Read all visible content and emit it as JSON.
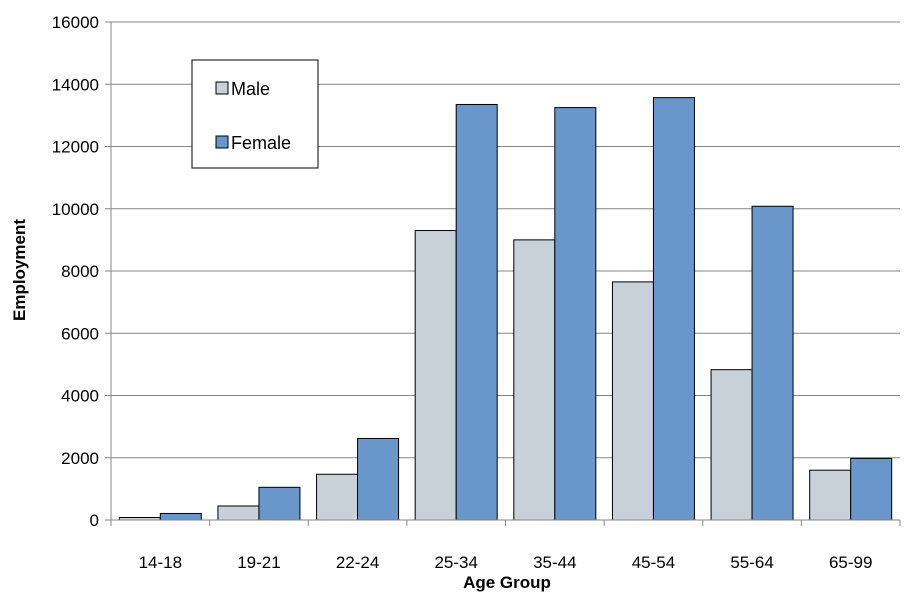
{
  "chart_data": {
    "type": "bar",
    "title": "",
    "xlabel": "Age Group",
    "ylabel": "Employment",
    "ylim": [
      0,
      16000
    ],
    "yticks": [
      0,
      2000,
      4000,
      6000,
      8000,
      10000,
      12000,
      14000,
      16000
    ],
    "grid": true,
    "legend_position": "top-left",
    "categories": [
      "14-18",
      "19-21",
      "22-24",
      "25-34",
      "35-44",
      "45-54",
      "55-64",
      "65-99"
    ],
    "series": [
      {
        "name": "Male",
        "color": "#c8d0d8",
        "values": [
          80,
          450,
          1470,
          9300,
          9000,
          7650,
          4830,
          1600
        ]
      },
      {
        "name": "Female",
        "color": "#6a97cb",
        "values": [
          210,
          1050,
          2620,
          13350,
          13250,
          13570,
          10080,
          1980
        ]
      }
    ]
  }
}
